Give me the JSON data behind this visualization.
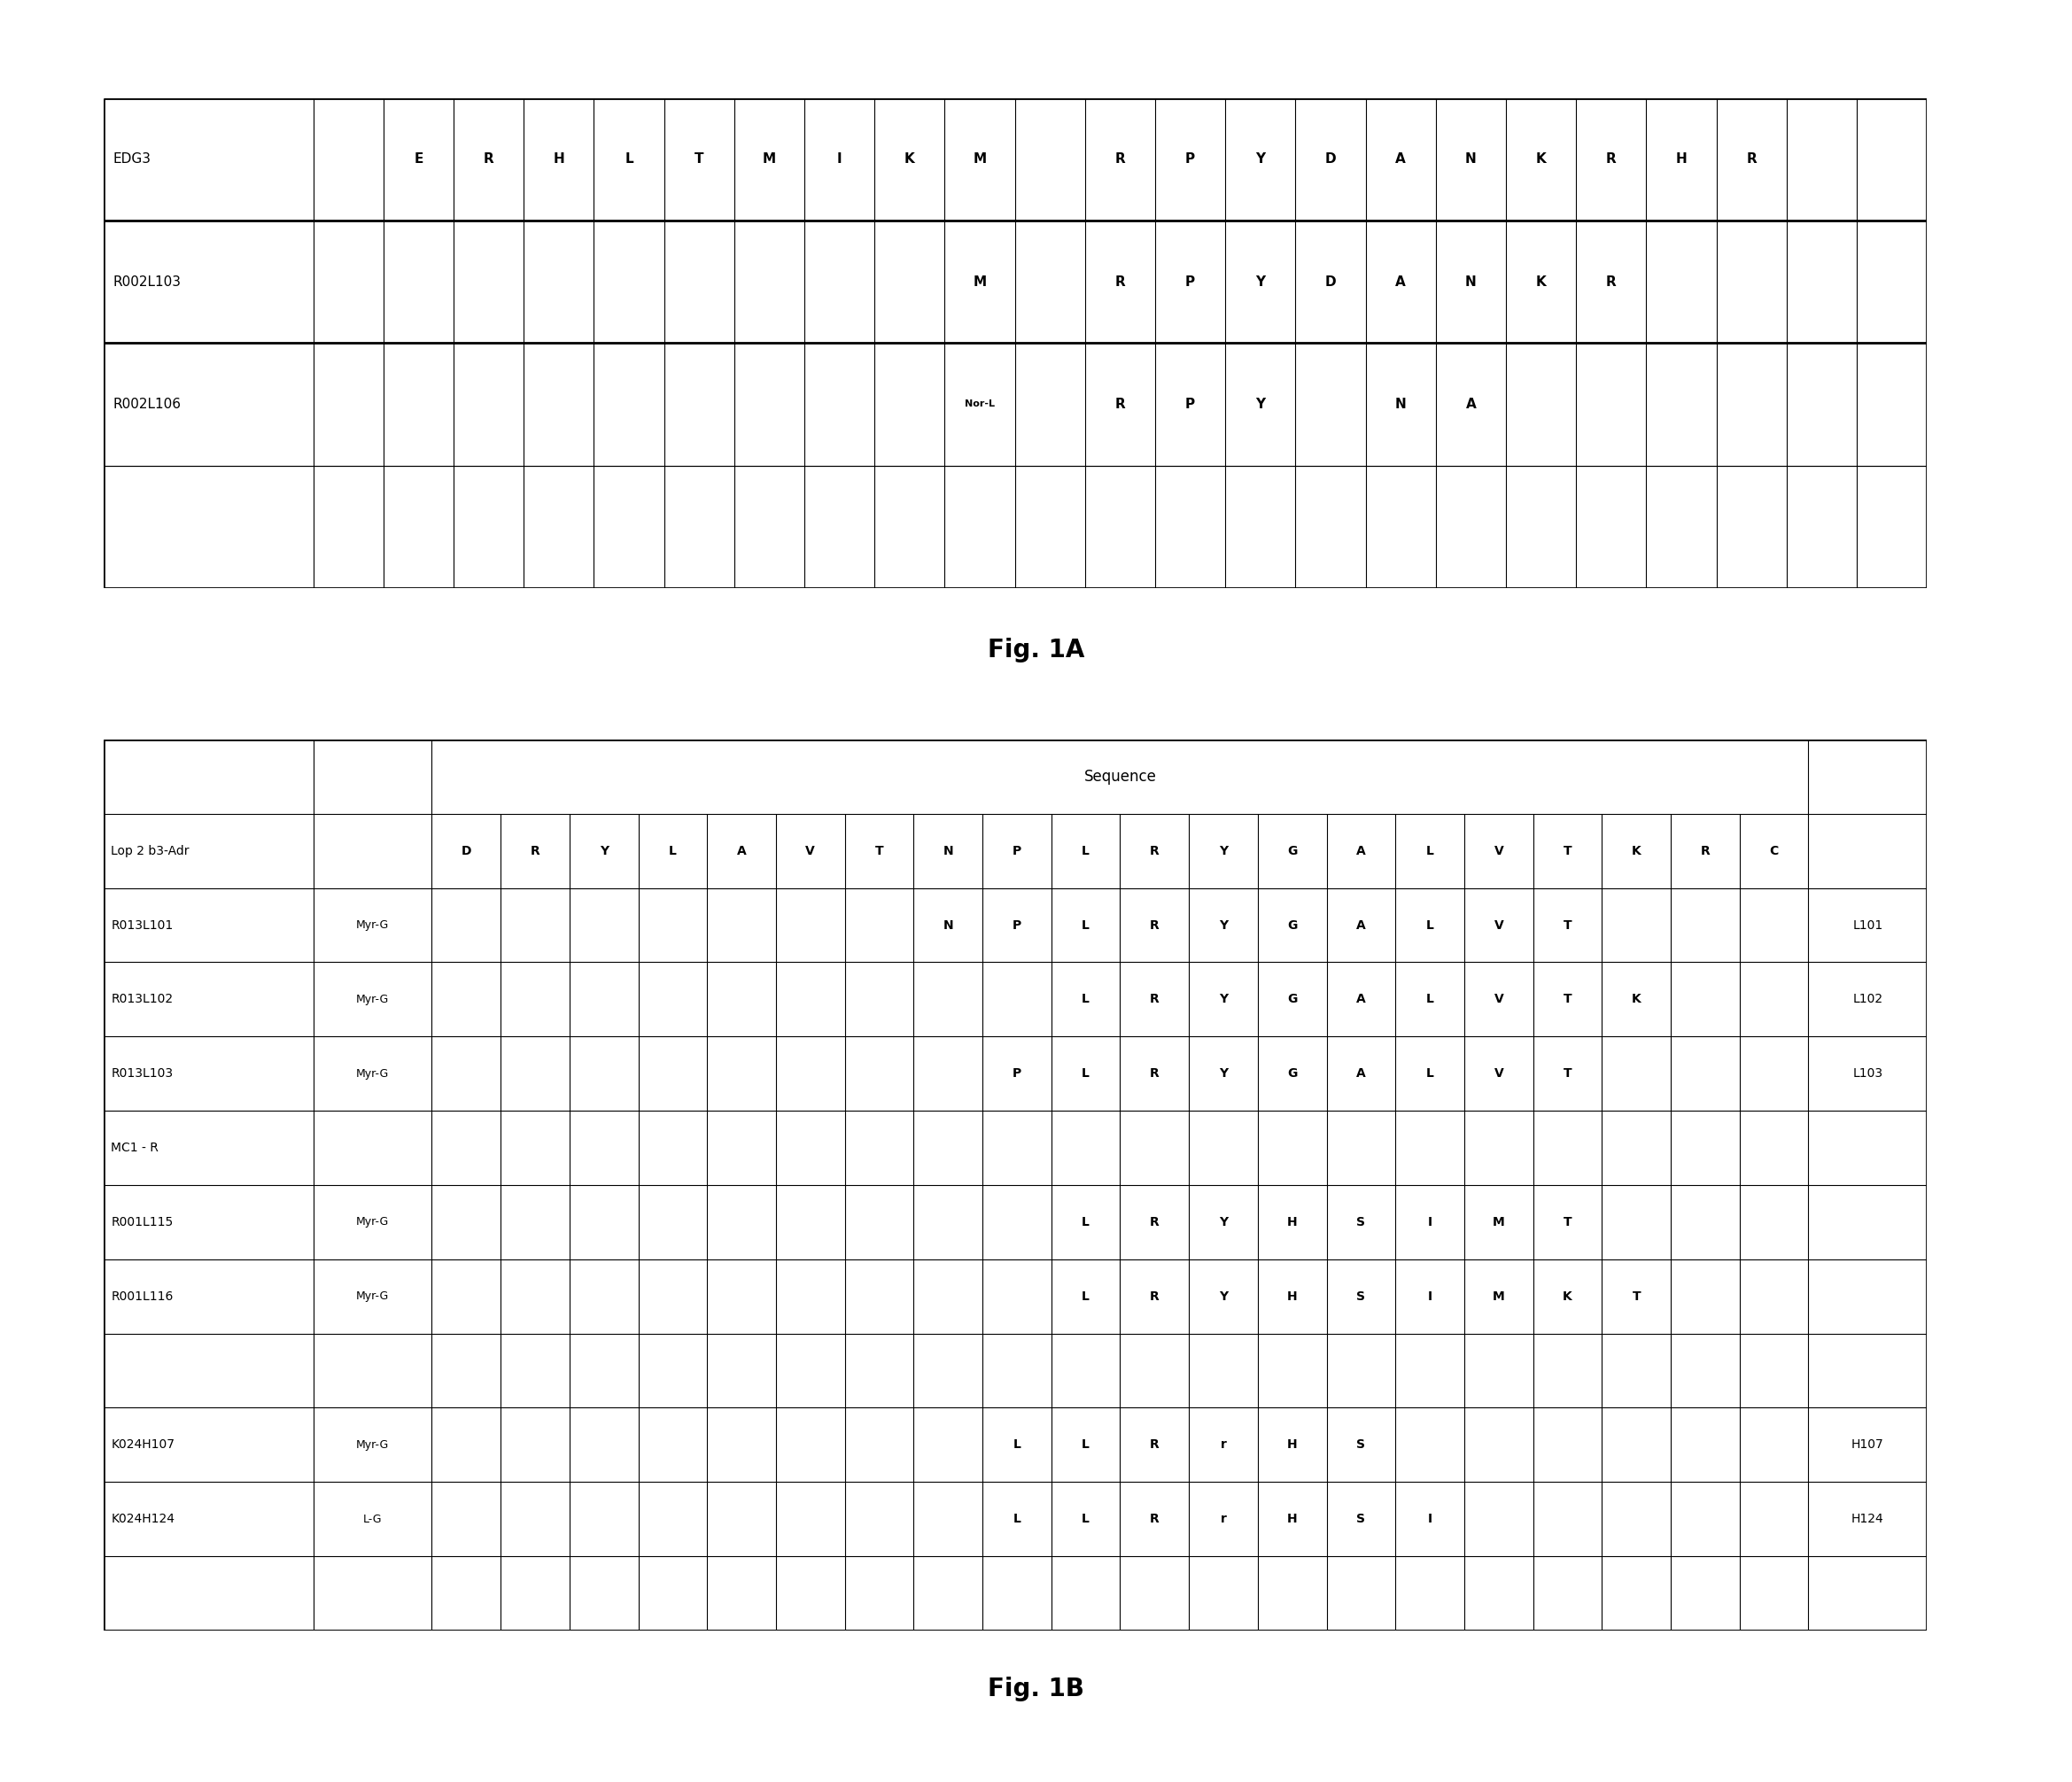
{
  "fig1A": {
    "title": "Fig. 1A",
    "num_data_cols": 23,
    "rows": [
      {
        "label": "EDG3",
        "cells": [
          {
            "col": 1,
            "text": "E"
          },
          {
            "col": 2,
            "text": "R"
          },
          {
            "col": 3,
            "text": "H"
          },
          {
            "col": 4,
            "text": "L"
          },
          {
            "col": 5,
            "text": "T"
          },
          {
            "col": 6,
            "text": "M"
          },
          {
            "col": 7,
            "text": "I"
          },
          {
            "col": 8,
            "text": "K"
          },
          {
            "col": 9,
            "text": "M"
          },
          {
            "col": 11,
            "text": "R"
          },
          {
            "col": 12,
            "text": "P"
          },
          {
            "col": 13,
            "text": "Y"
          },
          {
            "col": 14,
            "text": "D"
          },
          {
            "col": 15,
            "text": "A"
          },
          {
            "col": 16,
            "text": "N"
          },
          {
            "col": 17,
            "text": "K"
          },
          {
            "col": 18,
            "text": "R"
          },
          {
            "col": 19,
            "text": "H"
          },
          {
            "col": 20,
            "text": "R"
          }
        ],
        "thick_bottom": true
      },
      {
        "label": "R002L103",
        "cells": [
          {
            "col": 9,
            "text": "M"
          },
          {
            "col": 11,
            "text": "R"
          },
          {
            "col": 12,
            "text": "P"
          },
          {
            "col": 13,
            "text": "Y"
          },
          {
            "col": 14,
            "text": "D"
          },
          {
            "col": 15,
            "text": "A"
          },
          {
            "col": 16,
            "text": "N"
          },
          {
            "col": 17,
            "text": "K"
          },
          {
            "col": 18,
            "text": "R"
          }
        ],
        "thick_bottom": true
      },
      {
        "label": "R002L106",
        "cells": [
          {
            "col": 9,
            "text": "Nor-L"
          },
          {
            "col": 11,
            "text": "R"
          },
          {
            "col": 12,
            "text": "P"
          },
          {
            "col": 13,
            "text": "Y"
          },
          {
            "col": 15,
            "text": "N"
          },
          {
            "col": 16,
            "text": "A"
          }
        ],
        "thick_bottom": false
      },
      {
        "label": "",
        "cells": [],
        "thick_bottom": false
      }
    ]
  },
  "fig1B": {
    "title": "Fig. 1B",
    "num_seq_cols": 20,
    "rows": [
      {
        "label": "Lop 2 b3-Adr",
        "modifier": "",
        "cells": [
          {
            "col": 0,
            "text": "D"
          },
          {
            "col": 1,
            "text": "R"
          },
          {
            "col": 2,
            "text": "Y"
          },
          {
            "col": 3,
            "text": "L"
          },
          {
            "col": 4,
            "text": "A"
          },
          {
            "col": 5,
            "text": "V"
          },
          {
            "col": 6,
            "text": "T"
          },
          {
            "col": 7,
            "text": "N"
          },
          {
            "col": 8,
            "text": "P"
          },
          {
            "col": 9,
            "text": "L"
          },
          {
            "col": 10,
            "text": "R"
          },
          {
            "col": 11,
            "text": "Y"
          },
          {
            "col": 12,
            "text": "G"
          },
          {
            "col": 13,
            "text": "A"
          },
          {
            "col": 14,
            "text": "L"
          },
          {
            "col": 15,
            "text": "V"
          },
          {
            "col": 16,
            "text": "T"
          },
          {
            "col": 17,
            "text": "K"
          },
          {
            "col": 18,
            "text": "R"
          },
          {
            "col": 19,
            "text": "C"
          }
        ],
        "suffix": "",
        "is_seq_header": true
      },
      {
        "label": "R013L101",
        "modifier": "Myr-G",
        "cells": [
          {
            "col": 7,
            "text": "N"
          },
          {
            "col": 8,
            "text": "P"
          },
          {
            "col": 9,
            "text": "L"
          },
          {
            "col": 10,
            "text": "R"
          },
          {
            "col": 11,
            "text": "Y"
          },
          {
            "col": 12,
            "text": "G"
          },
          {
            "col": 13,
            "text": "A"
          },
          {
            "col": 14,
            "text": "L"
          },
          {
            "col": 15,
            "text": "V"
          },
          {
            "col": 16,
            "text": "T"
          }
        ],
        "suffix": "L101",
        "is_seq_header": false
      },
      {
        "label": "R013L102",
        "modifier": "Myr-G",
        "cells": [
          {
            "col": 9,
            "text": "L"
          },
          {
            "col": 10,
            "text": "R"
          },
          {
            "col": 11,
            "text": "Y"
          },
          {
            "col": 12,
            "text": "G"
          },
          {
            "col": 13,
            "text": "A"
          },
          {
            "col": 14,
            "text": "L"
          },
          {
            "col": 15,
            "text": "V"
          },
          {
            "col": 16,
            "text": "T"
          },
          {
            "col": 17,
            "text": "K"
          }
        ],
        "suffix": "L102",
        "is_seq_header": false
      },
      {
        "label": "R013L103",
        "modifier": "Myr-G",
        "cells": [
          {
            "col": 8,
            "text": "P"
          },
          {
            "col": 9,
            "text": "L"
          },
          {
            "col": 10,
            "text": "R"
          },
          {
            "col": 11,
            "text": "Y"
          },
          {
            "col": 12,
            "text": "G"
          },
          {
            "col": 13,
            "text": "A"
          },
          {
            "col": 14,
            "text": "L"
          },
          {
            "col": 15,
            "text": "V"
          },
          {
            "col": 16,
            "text": "T"
          }
        ],
        "suffix": "L103",
        "is_seq_header": false
      },
      {
        "label": "MC1 - R",
        "modifier": "",
        "cells": [],
        "suffix": "",
        "is_seq_header": false
      },
      {
        "label": "R001L115",
        "modifier": "Myr-G",
        "cells": [
          {
            "col": 9,
            "text": "L"
          },
          {
            "col": 10,
            "text": "R"
          },
          {
            "col": 11,
            "text": "Y"
          },
          {
            "col": 12,
            "text": "H"
          },
          {
            "col": 13,
            "text": "S"
          },
          {
            "col": 14,
            "text": "I"
          },
          {
            "col": 15,
            "text": "M"
          },
          {
            "col": 16,
            "text": "T"
          }
        ],
        "suffix": "",
        "is_seq_header": false
      },
      {
        "label": "R001L116",
        "modifier": "Myr-G",
        "cells": [
          {
            "col": 9,
            "text": "L"
          },
          {
            "col": 10,
            "text": "R"
          },
          {
            "col": 11,
            "text": "Y"
          },
          {
            "col": 12,
            "text": "H"
          },
          {
            "col": 13,
            "text": "S"
          },
          {
            "col": 14,
            "text": "I"
          },
          {
            "col": 15,
            "text": "M"
          },
          {
            "col": 16,
            "text": "K"
          },
          {
            "col": 17,
            "text": "T"
          }
        ],
        "suffix": "",
        "is_seq_header": false
      },
      {
        "label": "",
        "modifier": "",
        "cells": [],
        "suffix": "",
        "is_seq_header": false
      },
      {
        "label": "K024H107",
        "modifier": "Myr-G",
        "cells": [
          {
            "col": 8,
            "text": "L"
          },
          {
            "col": 9,
            "text": "L"
          },
          {
            "col": 10,
            "text": "R"
          },
          {
            "col": 11,
            "text": "r"
          },
          {
            "col": 12,
            "text": "H"
          },
          {
            "col": 13,
            "text": "S"
          }
        ],
        "suffix": "H107",
        "is_seq_header": false
      },
      {
        "label": "K024H124",
        "modifier": "L-G",
        "cells": [
          {
            "col": 8,
            "text": "L"
          },
          {
            "col": 9,
            "text": "L"
          },
          {
            "col": 10,
            "text": "R"
          },
          {
            "col": 11,
            "text": "r"
          },
          {
            "col": 12,
            "text": "H"
          },
          {
            "col": 13,
            "text": "S"
          },
          {
            "col": 14,
            "text": "I"
          }
        ],
        "suffix": "H124",
        "is_seq_header": false
      },
      {
        "label": "",
        "modifier": "",
        "cells": [],
        "suffix": "",
        "is_seq_header": false
      }
    ]
  }
}
